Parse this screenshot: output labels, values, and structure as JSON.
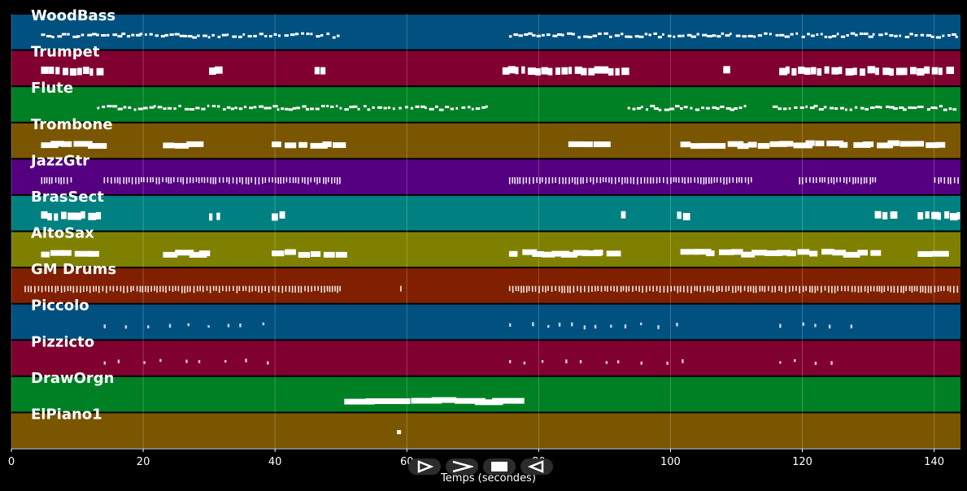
{
  "chart_data": {
    "type": "piano-roll",
    "title": "",
    "xlabel": "Temps (secondes)",
    "ylabel": "",
    "xlim": [
      0,
      144
    ],
    "xticks": [
      0,
      20,
      40,
      60,
      80,
      100,
      120,
      140
    ],
    "grid": true,
    "tracks": [
      {
        "name": "WoodBass",
        "color": "#005080",
        "density": "dense-small",
        "segments": [
          [
            4.5,
            50
          ],
          [
            75.5,
            144
          ]
        ]
      },
      {
        "name": "Trumpet",
        "color": "#800030",
        "density": "chord-clusters",
        "segments": [
          [
            4.5,
            13
          ],
          [
            30,
            31
          ],
          [
            46,
            47
          ],
          [
            74.5,
            93.5
          ],
          [
            108,
            109
          ],
          [
            116.5,
            144
          ]
        ]
      },
      {
        "name": "Flute",
        "color": "#008025",
        "density": "dense-small",
        "segments": [
          [
            13,
            72
          ],
          [
            93.5,
            111.5
          ],
          [
            115.5,
            143
          ]
        ]
      },
      {
        "name": "Trombone",
        "color": "#7a5600",
        "density": "wide-blocks",
        "segments": [
          [
            4.5,
            13
          ],
          [
            23,
            27.5
          ],
          [
            39.5,
            50
          ],
          [
            84.5,
            89
          ],
          [
            101.5,
            144
          ]
        ]
      },
      {
        "name": "JazzGtr",
        "color": "#550080",
        "density": "dense-vertical",
        "segments": [
          [
            4.5,
            9
          ],
          [
            14,
            50
          ],
          [
            75.5,
            112.5
          ],
          [
            119.5,
            131
          ],
          [
            140,
            144
          ]
        ]
      },
      {
        "name": "BrasSect",
        "color": "#008080",
        "density": "chord-clusters",
        "segments": [
          [
            4.5,
            13
          ],
          [
            30,
            31.5
          ],
          [
            39.5,
            41
          ],
          [
            92.5,
            93.5
          ],
          [
            101,
            102.5
          ],
          [
            131,
            133.5
          ],
          [
            137.5,
            144
          ]
        ]
      },
      {
        "name": "AltoSax",
        "color": "#808000",
        "density": "wide-blocks",
        "segments": [
          [
            4.5,
            13
          ],
          [
            23,
            30
          ],
          [
            39.5,
            50
          ],
          [
            75.5,
            92
          ],
          [
            101.5,
            131
          ],
          [
            137.5,
            144
          ]
        ]
      },
      {
        "name": "GM Drums",
        "color": "#802000",
        "density": "dense-vertical",
        "segments": [
          [
            2,
            50
          ],
          [
            59,
            59.5
          ],
          [
            75.5,
            144
          ]
        ]
      },
      {
        "name": "Piccolo",
        "color": "#005080",
        "density": "sparse-dots",
        "segments": [
          [
            14,
            40
          ],
          [
            75.5,
            103
          ],
          [
            116.5,
            128
          ]
        ]
      },
      {
        "name": "Pizzicto",
        "color": "#800030",
        "density": "sparse-dots",
        "segments": [
          [
            14,
            40
          ],
          [
            75.5,
            103
          ],
          [
            116.5,
            128
          ]
        ]
      },
      {
        "name": "DrawOrgn",
        "color": "#008025",
        "density": "long-notes",
        "segments": [
          [
            50.5,
            73.5
          ]
        ]
      },
      {
        "name": "ElPiano1",
        "color": "#7a5600",
        "density": "single-blip",
        "segments": [
          [
            58.5,
            59.5
          ]
        ]
      }
    ]
  },
  "controls": [
    {
      "name": "play-button",
      "icon": "play-outline-icon"
    },
    {
      "name": "forward-button",
      "icon": "chevron-right-icon"
    },
    {
      "name": "stop-button",
      "icon": "stop-icon"
    },
    {
      "name": "rewind-button",
      "icon": "rewind-outline-icon"
    }
  ]
}
